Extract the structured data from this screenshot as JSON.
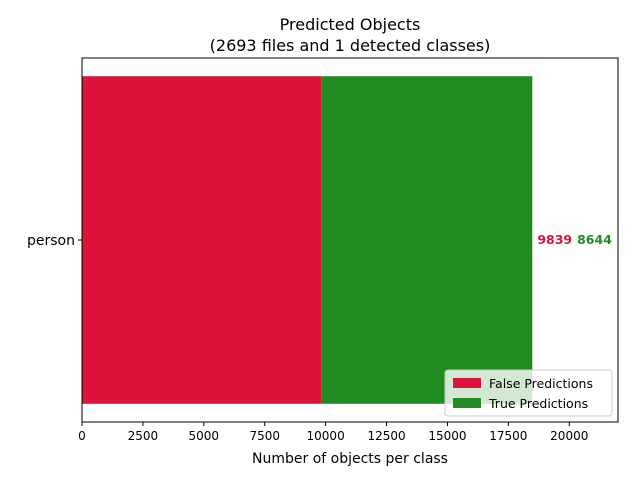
{
  "chart_data": {
    "type": "bar",
    "orientation": "horizontal",
    "stacked": true,
    "title": "Predicted Objects",
    "subtitle": "(2693 files and 1 detected classes)",
    "xlabel": "Number of objects per class",
    "ylabel": "",
    "categories": [
      "person"
    ],
    "series": [
      {
        "name": "False Predictions",
        "values": [
          9839
        ],
        "color": "#dc143c"
      },
      {
        "name": "True Predictions",
        "values": [
          8644
        ],
        "color": "#228b22"
      }
    ],
    "xlim": [
      0,
      22000
    ],
    "xticks": [
      0,
      2500,
      5000,
      7500,
      10000,
      12500,
      15000,
      17500,
      20000
    ],
    "xtick_labels": [
      "0",
      "2500",
      "5000",
      "7500",
      "10000",
      "12500",
      "15000",
      "17500",
      "20000"
    ],
    "data_labels": [
      "9839",
      "8644"
    ],
    "grid": false,
    "legend_position": "lower-right"
  }
}
